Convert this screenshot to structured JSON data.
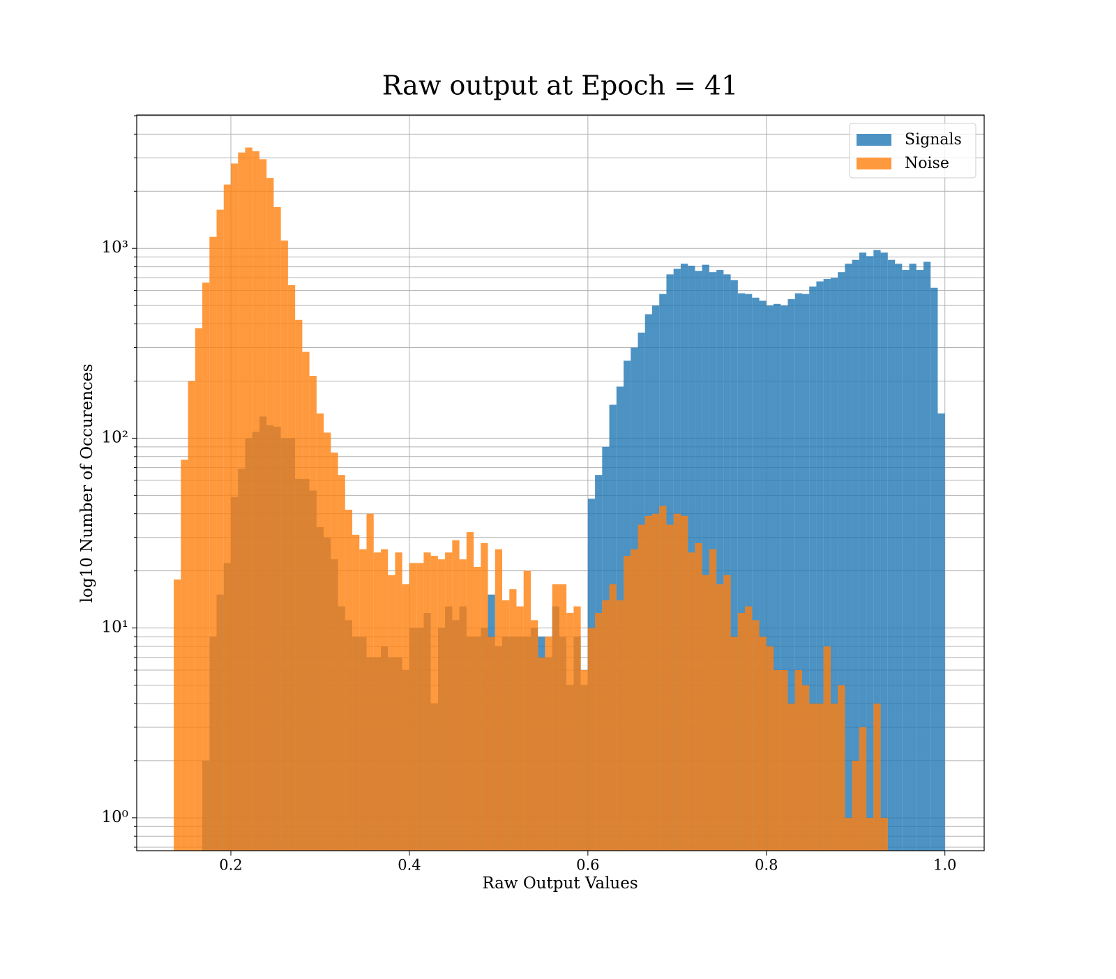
{
  "chart_data": {
    "type": "histogram",
    "title": "Raw output at Epoch = 41",
    "xlabel": "Raw Output Values",
    "ylabel": "log10 Number of Occurences",
    "yscale": "log",
    "grid": true,
    "legend": "upper right",
    "xlim": [
      0.0945,
      1.044
    ],
    "ylim": [
      0.671,
      5040
    ],
    "xticks": [
      0.2,
      0.4,
      0.6,
      0.8,
      {
        "value": 1,
        "label": "1.0"
      }
    ],
    "yticks": [
      {
        "value": 1,
        "label": "10⁰"
      },
      {
        "value": 10,
        "label": "10¹"
      },
      {
        "value": 100,
        "label": "10²"
      },
      {
        "value": 1000,
        "label": "10³"
      }
    ],
    "yminorticks": [
      0.7,
      0.8,
      0.9,
      2,
      3,
      4,
      5,
      6,
      7,
      8,
      9,
      20,
      30,
      40,
      50,
      60,
      70,
      80,
      90,
      200,
      300,
      400,
      500,
      600,
      700,
      800,
      900,
      2000,
      3000,
      4000,
      5000
    ],
    "series": [
      {
        "name": "Signals",
        "color": "#1f77b4",
        "opacity": 0.8,
        "bins": [
          0.168,
          0.176,
          0.184,
          0.192,
          0.2,
          0.208,
          0.216,
          0.224,
          0.232,
          0.24,
          0.248,
          0.256,
          0.264,
          0.272,
          0.28,
          0.288,
          0.296,
          0.304,
          0.312,
          0.32,
          0.328,
          0.336,
          0.344,
          0.352,
          0.36,
          0.368,
          0.376,
          0.384,
          0.392,
          0.4,
          0.408,
          0.416,
          0.424,
          0.432,
          0.44,
          0.448,
          0.456,
          0.464,
          0.472,
          0.48,
          0.488,
          0.496,
          0.504,
          0.512,
          0.52,
          0.528,
          0.536,
          0.544,
          0.552,
          0.56,
          0.568,
          0.576,
          0.584,
          0.592,
          0.6,
          0.608,
          0.616,
          0.624,
          0.632,
          0.64,
          0.648,
          0.656,
          0.664,
          0.672,
          0.68,
          0.688,
          0.696,
          0.704,
          0.712,
          0.72,
          0.728,
          0.736,
          0.744,
          0.752,
          0.76,
          0.768,
          0.776,
          0.784,
          0.792,
          0.8,
          0.808,
          0.816,
          0.824,
          0.832,
          0.84,
          0.848,
          0.856,
          0.864,
          0.872,
          0.88,
          0.888,
          0.896,
          0.904,
          0.912,
          0.92,
          0.928,
          0.936,
          0.944,
          0.952,
          0.96,
          0.968,
          0.976,
          0.984,
          0.992,
          1.0
        ],
        "values": [
          2,
          9,
          15,
          22,
          49,
          69,
          100,
          108,
          130,
          117,
          115,
          100,
          100,
          61,
          61,
          53,
          34,
          30,
          23,
          13,
          11,
          9,
          9,
          7,
          7,
          8,
          7,
          7,
          6,
          10,
          10,
          12,
          4,
          10,
          13,
          11,
          13,
          9,
          9,
          10,
          15,
          8,
          9,
          9,
          9,
          9,
          10,
          9,
          7,
          13,
          9,
          5,
          9,
          5,
          48,
          64,
          90,
          150,
          187,
          256,
          300,
          360,
          450,
          500,
          575,
          730,
          780,
          830,
          810,
          760,
          820,
          750,
          770,
          730,
          680,
          580,
          575,
          550,
          530,
          500,
          510,
          500,
          540,
          580,
          575,
          630,
          670,
          690,
          700,
          750,
          830,
          870,
          950,
          910,
          980,
          950,
          870,
          830,
          770,
          830,
          770,
          850,
          620,
          135
        ]
      },
      {
        "name": "Noise",
        "color": "#ff7f0e",
        "opacity": 0.8,
        "bins": [
          0.136,
          0.144,
          0.152,
          0.16,
          0.168,
          0.176,
          0.184,
          0.192,
          0.2,
          0.208,
          0.216,
          0.224,
          0.232,
          0.24,
          0.248,
          0.256,
          0.264,
          0.272,
          0.28,
          0.288,
          0.296,
          0.304,
          0.312,
          0.32,
          0.328,
          0.336,
          0.344,
          0.352,
          0.36,
          0.368,
          0.376,
          0.384,
          0.392,
          0.4,
          0.408,
          0.416,
          0.424,
          0.432,
          0.44,
          0.448,
          0.456,
          0.464,
          0.472,
          0.48,
          0.488,
          0.496,
          0.504,
          0.512,
          0.52,
          0.528,
          0.536,
          0.544,
          0.552,
          0.56,
          0.568,
          0.576,
          0.584,
          0.592,
          0.6,
          0.608,
          0.616,
          0.624,
          0.632,
          0.64,
          0.648,
          0.656,
          0.664,
          0.672,
          0.68,
          0.688,
          0.696,
          0.704,
          0.712,
          0.72,
          0.728,
          0.736,
          0.744,
          0.752,
          0.76,
          0.768,
          0.776,
          0.784,
          0.792,
          0.8,
          0.808,
          0.816,
          0.824,
          0.832,
          0.84,
          0.848,
          0.856,
          0.864,
          0.872,
          0.88,
          0.888,
          0.896,
          0.904,
          0.912,
          0.92,
          0.928,
          0.936
        ],
        "values": [
          18,
          77,
          200,
          380,
          660,
          1150,
          1600,
          2170,
          2800,
          3200,
          3400,
          3250,
          2950,
          2350,
          1650,
          1100,
          640,
          420,
          285,
          213,
          135,
          107,
          84,
          64,
          42,
          31,
          26,
          40,
          25,
          26,
          19,
          25,
          17,
          22,
          22,
          25,
          24,
          23,
          25,
          29,
          23,
          32,
          21,
          28,
          9,
          26,
          14,
          16,
          13,
          20,
          11,
          7,
          9,
          17,
          17,
          12,
          13,
          6,
          10,
          12,
          14,
          17,
          14,
          24,
          26,
          35,
          39,
          40,
          44,
          35,
          40,
          39,
          25,
          28,
          19,
          26,
          17,
          19,
          9,
          12,
          13,
          11,
          9,
          8,
          6,
          6,
          4,
          6,
          5,
          4,
          4,
          8,
          4,
          5,
          1,
          2,
          3,
          1,
          4,
          1
        ]
      }
    ]
  }
}
